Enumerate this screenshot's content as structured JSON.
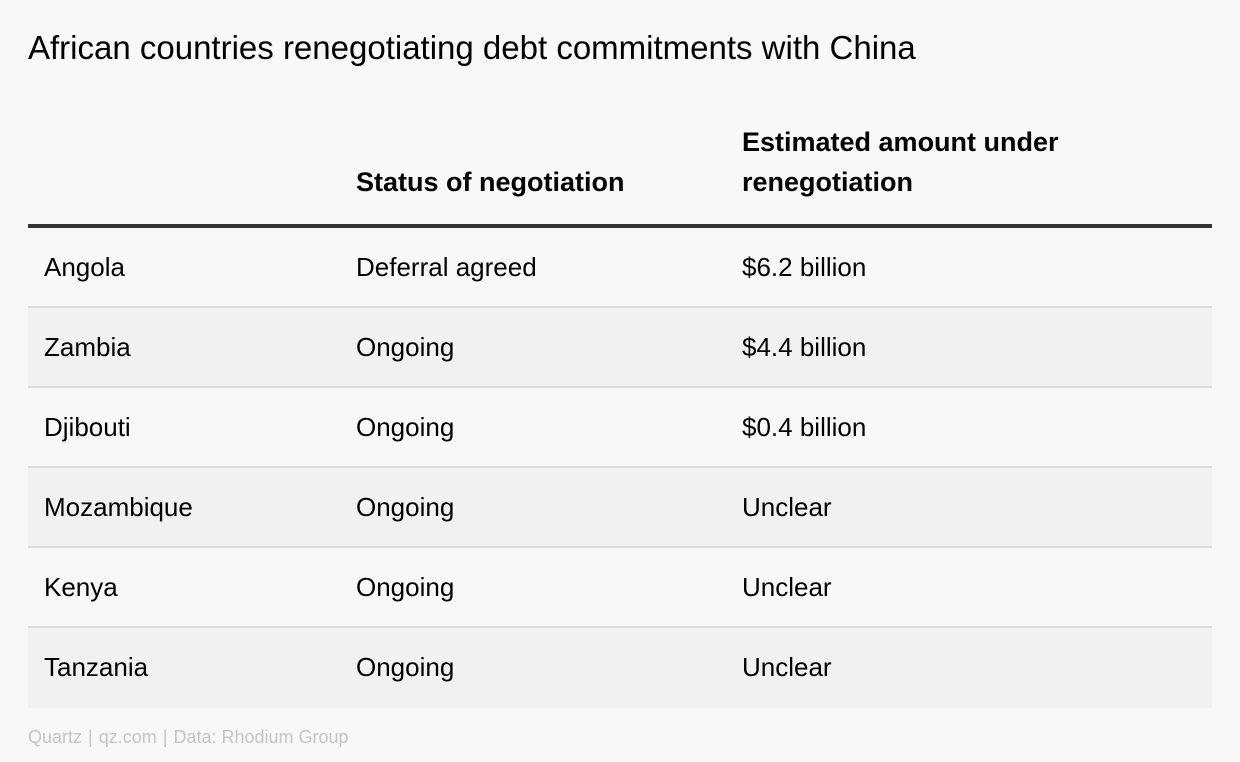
{
  "chart_data": {
    "type": "table",
    "title": "African countries renegotiating debt commitments with China",
    "columns": [
      "",
      "Status of negotiation",
      "Estimated amount under renegotiation"
    ],
    "rows": [
      [
        "Angola",
        "Deferral agreed",
        "$6.2 billion"
      ],
      [
        "Zambia",
        "Ongoing",
        "$4.4 billion"
      ],
      [
        "Djibouti",
        "Ongoing",
        "$0.4 billion"
      ],
      [
        "Mozambique",
        "Ongoing",
        "Unclear"
      ],
      [
        "Kenya",
        "Ongoing",
        "Unclear"
      ],
      [
        "Tanzania",
        "Ongoing",
        "Unclear"
      ]
    ]
  },
  "footer": {
    "brand": "Quartz",
    "site": "qz.com",
    "source": "Data: Rhodium Group"
  },
  "colors": {
    "background": "#f8f8f8",
    "row_alt": "#f1f1f1",
    "header_rule": "#333333",
    "row_rule": "#dddddd",
    "footer_text": "#c4c4c4"
  }
}
